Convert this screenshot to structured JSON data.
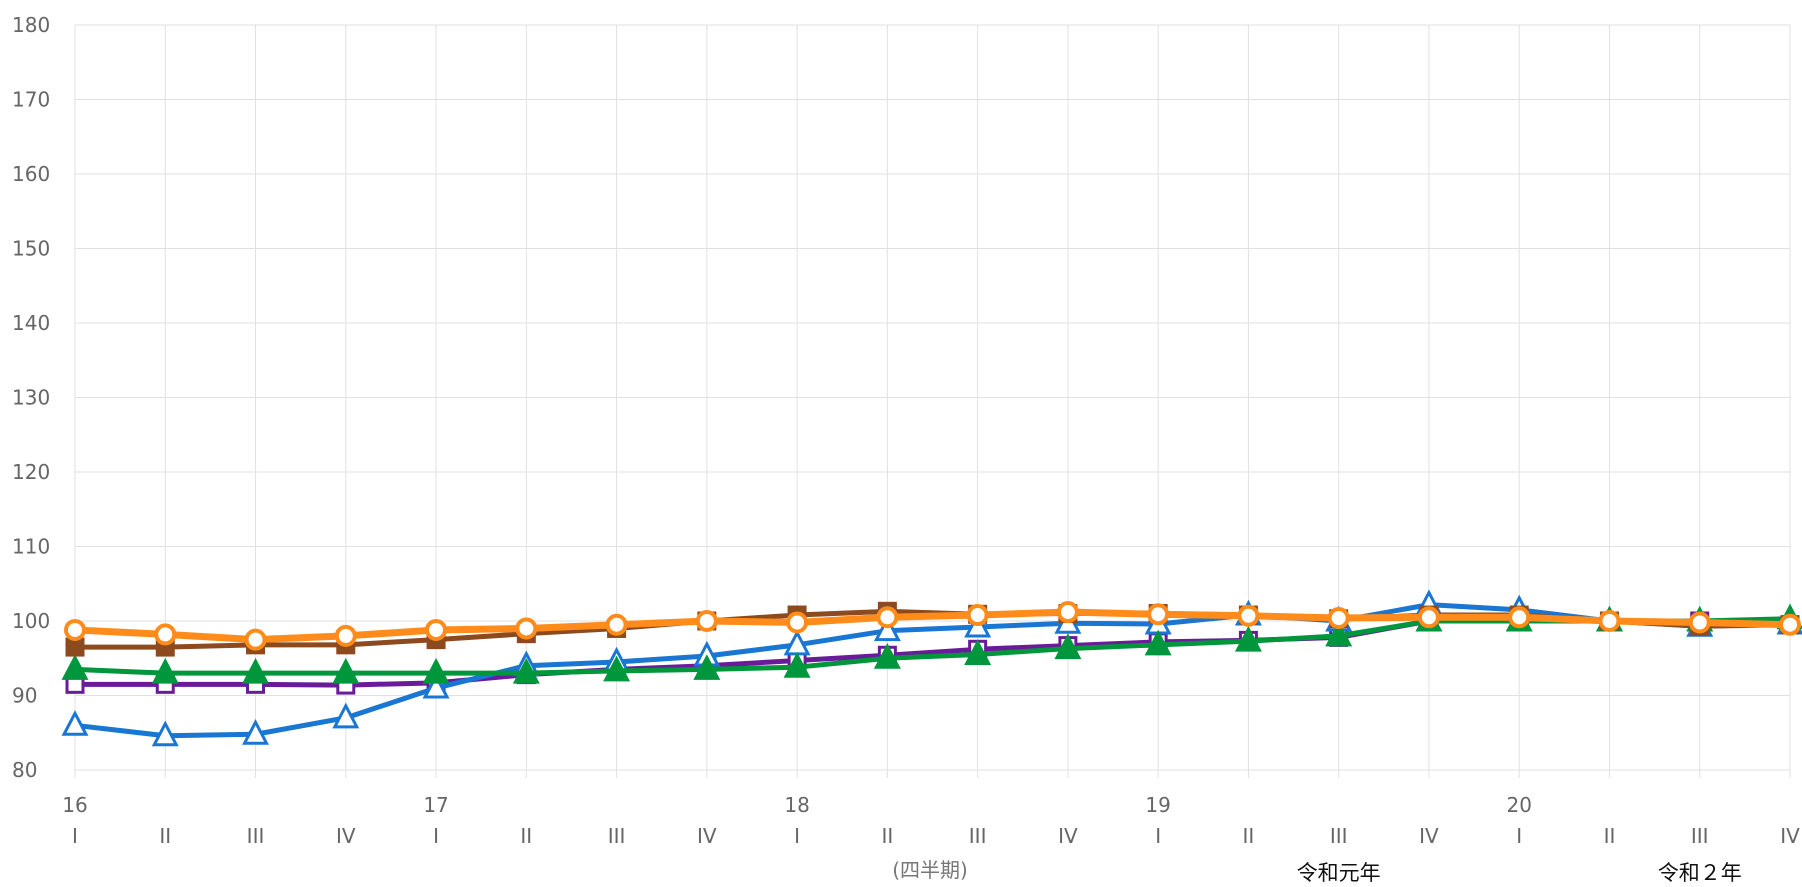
{
  "chart_data": {
    "type": "line",
    "x_unit": "(四半期)",
    "year_labels": [
      "16",
      "",
      "",
      "",
      "17",
      "",
      "",
      "",
      "18",
      "",
      "",
      "",
      "19",
      "",
      "",
      "",
      "20",
      "",
      "",
      ""
    ],
    "quarter_labels": [
      "I",
      "II",
      "III",
      "IV",
      "I",
      "II",
      "III",
      "IV",
      "I",
      "II",
      "III",
      "IV",
      "I",
      "II",
      "III",
      "IV",
      "I",
      "II",
      "III",
      "IV"
    ],
    "era_labels": [
      {
        "index": 14,
        "text": "令和元年"
      },
      {
        "index": 18,
        "text": "令和２年"
      }
    ],
    "ylim": [
      80,
      180
    ],
    "yticks": [
      80,
      90,
      100,
      110,
      120,
      130,
      140,
      150,
      160,
      170,
      180
    ],
    "grid": true,
    "series": [
      {
        "color": "#6a1b9a",
        "marker": "square-open",
        "values": [
          91.5,
          91.5,
          91.5,
          91.4,
          91.7,
          92.8,
          93.5,
          94.0,
          94.7,
          95.4,
          96.2,
          96.7,
          97.2,
          97.4,
          97.8,
          100.0,
          100.2,
          100.0,
          100.0,
          99.5
        ]
      },
      {
        "color": "#1976d2",
        "marker": "triangle-open",
        "values": [
          86.0,
          84.6,
          84.8,
          87.0,
          91.0,
          94.0,
          94.5,
          95.3,
          96.8,
          98.7,
          99.2,
          99.7,
          99.6,
          100.8,
          100.0,
          102.2,
          101.5,
          100.0,
          99.3,
          99.6
        ]
      },
      {
        "color": "#00963c",
        "marker": "triangle-filled",
        "values": [
          93.5,
          93.0,
          93.0,
          93.0,
          93.0,
          93.0,
          93.3,
          93.5,
          93.8,
          95.0,
          95.5,
          96.3,
          96.8,
          97.3,
          98.0,
          100.0,
          100.0,
          100.0,
          100.0,
          100.3
        ]
      },
      {
        "color": "#8c4a1e",
        "marker": "square-filled",
        "values": [
          96.5,
          96.5,
          96.8,
          96.8,
          97.5,
          98.3,
          99.0,
          100.0,
          100.8,
          101.3,
          100.9,
          101.0,
          101.0,
          100.8,
          100.3,
          100.8,
          100.8,
          100.0,
          99.3,
          99.5
        ]
      },
      {
        "color": "#ff8c1a",
        "marker": "circle-open",
        "values": [
          98.8,
          98.2,
          97.5,
          98.0,
          98.8,
          99.0,
          99.5,
          100.0,
          99.8,
          100.5,
          100.8,
          101.2,
          100.9,
          100.7,
          100.4,
          100.5,
          100.5,
          100.0,
          99.8,
          99.5
        ]
      }
    ]
  }
}
